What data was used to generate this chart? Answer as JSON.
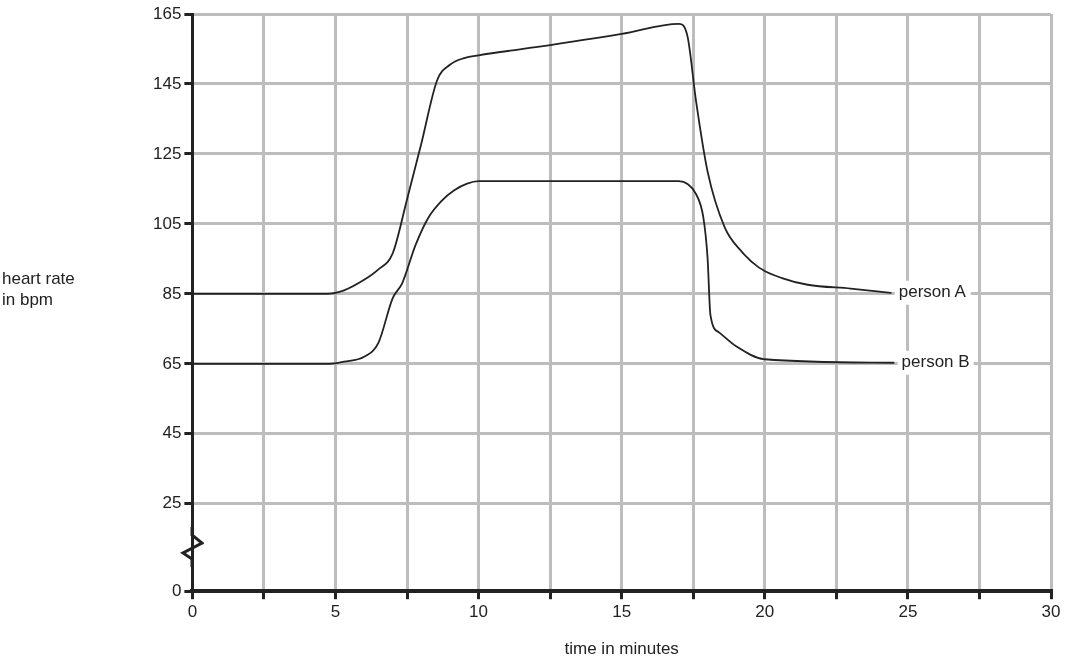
{
  "chart_data": {
    "type": "line",
    "xlabel": "time in minutes",
    "ylabel": "heart rate in bpm",
    "xlim": [
      0,
      30
    ],
    "xticks": [
      0,
      {
        "value": 2.5,
        "label": null
      },
      5,
      {
        "value": 7.5,
        "label": null
      },
      10,
      {
        "value": 12.5,
        "label": null
      },
      15,
      {
        "value": 17.5,
        "label": null
      },
      20,
      {
        "value": 22.5,
        "label": null
      },
      25,
      {
        "value": 27.5,
        "label": null
      },
      30
    ],
    "ylim": [
      0,
      165
    ],
    "yticks": [
      0,
      25,
      45,
      65,
      85,
      105,
      125,
      145,
      165
    ],
    "grid": true,
    "legend": false,
    "marker": "none",
    "line_style": "solid",
    "series": [
      {
        "name": "person A",
        "color": "#222222",
        "x": [
          0,
          4.7,
          5.3,
          6,
          6.5,
          7,
          7.5,
          8,
          8.55,
          9,
          9.5,
          10,
          12,
          15,
          17,
          17.3,
          17.6,
          18,
          18.6,
          19.2,
          19.8,
          20.6,
          21.5,
          23,
          24.4
        ],
        "values": [
          85,
          85,
          86,
          89,
          92,
          96.6,
          112,
          128,
          146,
          150.5,
          152.4,
          153.2,
          155.5,
          159.3,
          162.2,
          158.6,
          140,
          120,
          104,
          97,
          92.5,
          89.5,
          87.6,
          86.5,
          85.3
        ]
      },
      {
        "name": "person B",
        "color": "#222222",
        "x": [
          0,
          4.8,
          5.3,
          6,
          6.5,
          7,
          7.33,
          7.8,
          8.24,
          8.7,
          9.15,
          9.6,
          10,
          12,
          15,
          17,
          17.3,
          17.6,
          17.85,
          18,
          18.1,
          18.4,
          19,
          20,
          24.5
        ],
        "values": [
          65,
          65,
          65.6,
          67,
          71,
          83.8,
          88,
          99,
          106.7,
          111.5,
          114.6,
          116.5,
          117.2,
          117.2,
          117.2,
          117.2,
          116.4,
          113.5,
          107,
          95.4,
          79,
          74,
          70,
          66.3,
          65.3
        ]
      }
    ]
  }
}
